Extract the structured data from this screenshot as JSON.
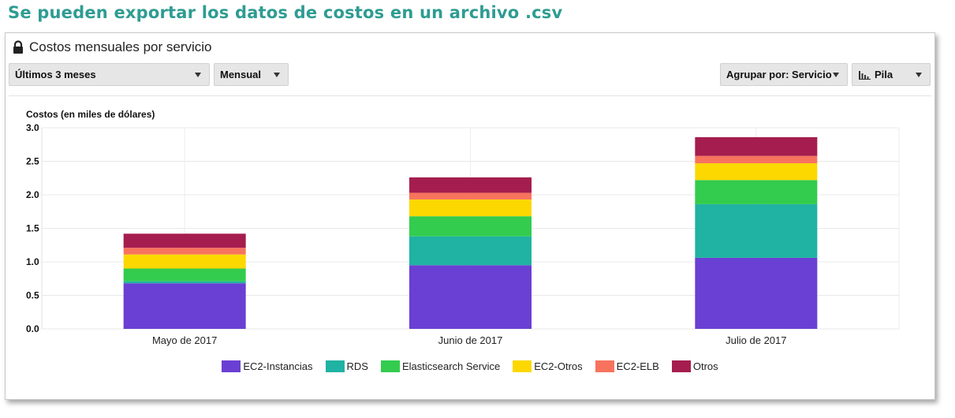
{
  "banner": {
    "text": "Se pueden exportar los datos de costos en un archivo .csv"
  },
  "panel": {
    "title": "Costos mensuales por servicio",
    "lock_icon": "lock-icon"
  },
  "controls": {
    "time_range": {
      "selected": "Últimos 3 meses"
    },
    "granularity": {
      "selected": "Mensual"
    },
    "group_by": {
      "selected": "Agrupar por: Servicio"
    },
    "chart_style": {
      "selected": "Pila",
      "icon": "bar-chart-icon"
    }
  },
  "chart_data": {
    "type": "bar",
    "stacked": true,
    "ylabel": "Costos (en miles de dólares)",
    "xlabel": "",
    "ylim": [
      0,
      3.0
    ],
    "yticks": [
      "3.0",
      "2.5",
      "2.0",
      "1.5",
      "1.0",
      "0.5",
      "0.0"
    ],
    "ytick_values": [
      3.0,
      2.5,
      2.0,
      1.5,
      1.0,
      0.5,
      0.0
    ],
    "categories": [
      "Mayo de 2017",
      "Junio de 2017",
      "Julio de 2017"
    ],
    "grid": true,
    "legend_position": "bottom",
    "series": [
      {
        "name": "EC2-Instancias",
        "color": "#6a3fd3",
        "values": [
          0.68,
          0.95,
          1.06
        ]
      },
      {
        "name": "RDS",
        "color": "#20b2a2",
        "values": [
          0.03,
          0.43,
          0.8
        ]
      },
      {
        "name": "Elasticsearch Service",
        "color": "#33cc4e",
        "values": [
          0.19,
          0.3,
          0.36
        ]
      },
      {
        "name": "EC2-Otros",
        "color": "#fcd800",
        "values": [
          0.21,
          0.25,
          0.25
        ]
      },
      {
        "name": "EC2-ELB",
        "color": "#f8735e",
        "values": [
          0.1,
          0.1,
          0.11
        ]
      },
      {
        "name": "Otros",
        "color": "#a51d4e",
        "values": [
          0.21,
          0.23,
          0.28
        ]
      }
    ]
  }
}
